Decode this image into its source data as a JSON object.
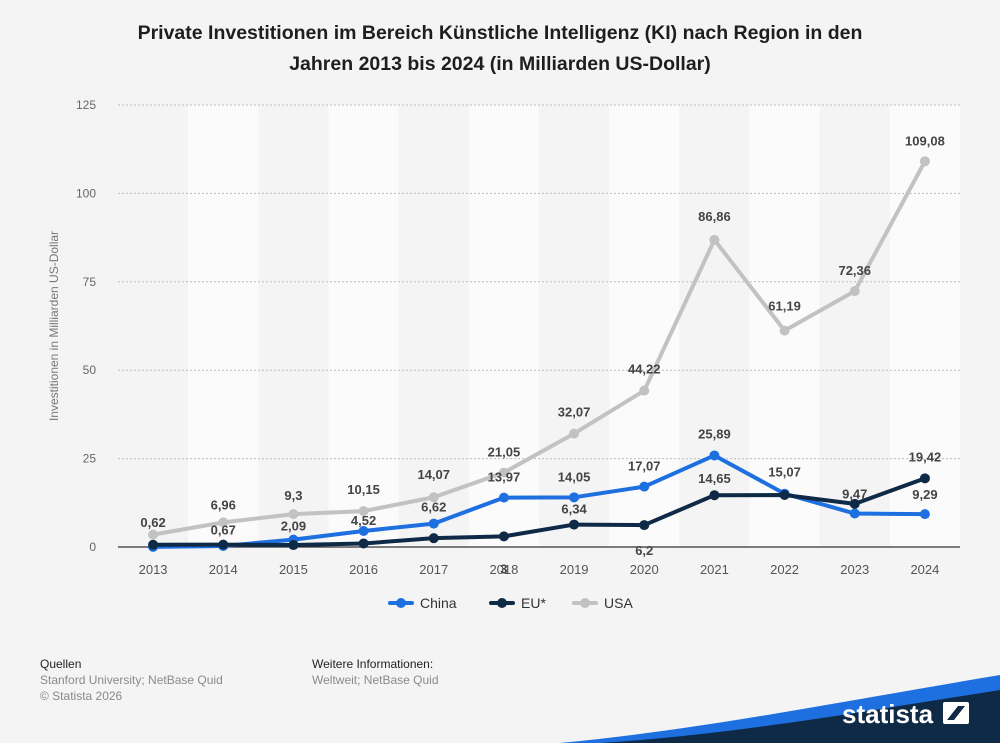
{
  "chart_data": {
    "type": "line",
    "title": "Private Investitionen im Bereich Künstliche Intelligenz (KI) nach Region in den Jahren 2013 bis 2024 (in Milliarden US-Dollar)",
    "title_line1": "Private Investitionen im Bereich Künstliche Intelligenz (KI) nach Region in den",
    "title_line2": "Jahren 2013 bis 2024 (in Milliarden US-Dollar)",
    "xlabel": "",
    "ylabel": "Investitionen in Milliarden US-Dollar",
    "ylim": [
      0,
      125
    ],
    "yticks": [
      0,
      25,
      50,
      75,
      100,
      125
    ],
    "categories": [
      "2013",
      "2014",
      "2015",
      "2016",
      "2017",
      "2018",
      "2019",
      "2020",
      "2021",
      "2022",
      "2023",
      "2024"
    ],
    "grid": true,
    "legend_position": "bottom",
    "series": [
      {
        "name": "China",
        "color": "#1e6fe0",
        "values": [
          0.05,
          0.3,
          2.09,
          4.52,
          6.62,
          13.97,
          14.05,
          17.07,
          25.89,
          15.07,
          9.47,
          9.29
        ],
        "labels": [
          "",
          "",
          "2,09",
          "4,52",
          "6,62",
          "13,97",
          "14,05",
          "17,07",
          "25,89",
          "15,07",
          "9,47",
          "9,29"
        ]
      },
      {
        "name": "EU*",
        "color": "#0f2a47",
        "values": [
          0.62,
          0.67,
          0.55,
          1.0,
          2.5,
          3,
          6.34,
          6.2,
          14.65,
          14.7,
          12.2,
          19.42
        ],
        "labels": [
          "0,62",
          "0,67",
          "",
          "",
          "",
          "3",
          "6,34",
          "6,2",
          "14,65",
          "",
          "",
          "19,42"
        ]
      },
      {
        "name": "USA",
        "color": "#c2c2c2",
        "values": [
          3.5,
          6.96,
          9.3,
          10.15,
          14.07,
          21.05,
          32.07,
          44.22,
          86.86,
          61.19,
          72.36,
          109.08
        ],
        "labels": [
          "",
          "6,96",
          "9,3",
          "10,15",
          "14,07",
          "21,05",
          "32,07",
          "44,22",
          "86,86",
          "61,19",
          "72,36",
          "109,08"
        ]
      }
    ]
  },
  "footer": {
    "sources_heading": "Quellen",
    "sources_line1": "Stanford University; NetBase Quid",
    "sources_line2": "© Statista 2026",
    "info_heading": "Weitere Informationen:",
    "info_line1": "Weltweit; NetBase Quid"
  },
  "brand": {
    "name": "statista"
  }
}
